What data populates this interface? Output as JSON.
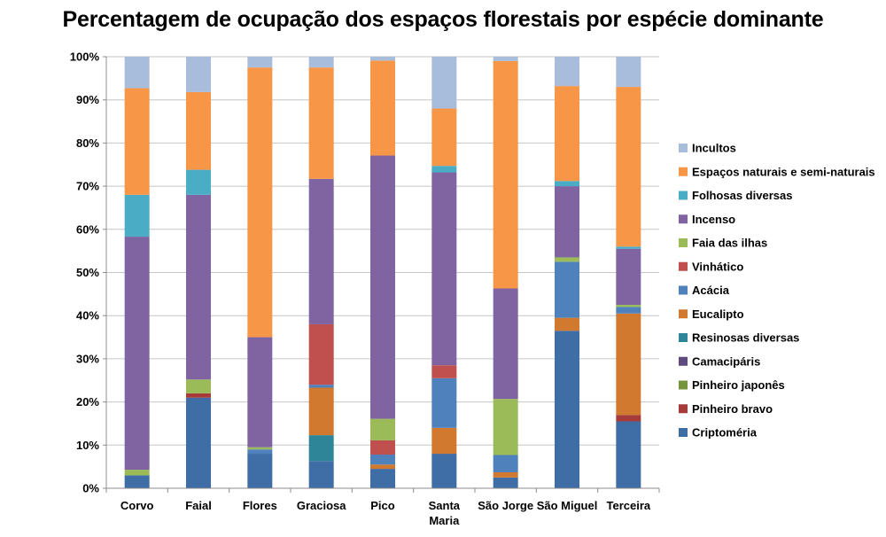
{
  "chart_data": {
    "type": "bar",
    "stacked": "percent",
    "title": "Percentagem de ocupação dos espaços florestais por espécie dominante",
    "xlabel": "",
    "ylabel": "",
    "ylim": [
      0,
      100
    ],
    "yticks": [
      "0%",
      "10%",
      "20%",
      "30%",
      "40%",
      "50%",
      "60%",
      "70%",
      "80%",
      "90%",
      "100%"
    ],
    "legend_position": "right",
    "categories": [
      "Corvo",
      "Faial",
      "Flores",
      "Graciosa",
      "Pico",
      "Santa Maria",
      "São Jorge",
      "São Miguel",
      "Terceira"
    ],
    "category_lines": [
      [
        "Corvo"
      ],
      [
        "Faial"
      ],
      [
        "Flores"
      ],
      [
        "Graciosa"
      ],
      [
        "Pico"
      ],
      [
        "Santa",
        "Maria"
      ],
      [
        "São Jorge"
      ],
      [
        "São Miguel"
      ],
      [
        "Terceira"
      ]
    ],
    "series": [
      {
        "name": "Criptoméria",
        "color": "#3F6DA5",
        "values": [
          3.0,
          21.0,
          8.0,
          6.3,
          4.5,
          8.0,
          2.5,
          36.5,
          15.5
        ]
      },
      {
        "name": "Pinheiro bravo",
        "color": "#A63B3A",
        "values": [
          0.0,
          1.0,
          0.0,
          0.0,
          0.0,
          0.0,
          0.0,
          0.0,
          1.5
        ]
      },
      {
        "name": "Pinheiro japonês",
        "color": "#76943B",
        "values": [
          0.0,
          0.0,
          0.0,
          0.0,
          0.0,
          0.0,
          0.0,
          0.0,
          0.0
        ]
      },
      {
        "name": "Camacipáris",
        "color": "#5E4A7E",
        "values": [
          0.0,
          0.0,
          0.0,
          0.0,
          0.0,
          0.0,
          0.0,
          0.0,
          0.0
        ]
      },
      {
        "name": "Resinosas diversas",
        "color": "#2D8597",
        "values": [
          0.0,
          0.0,
          0.0,
          6.0,
          0.0,
          0.0,
          0.0,
          0.0,
          0.0
        ]
      },
      {
        "name": "Eucalipto",
        "color": "#D0792F",
        "values": [
          0.0,
          0.0,
          0.0,
          11.0,
          1.0,
          6.0,
          1.2,
          3.0,
          23.5
        ]
      },
      {
        "name": "Acácia",
        "color": "#4F81BD",
        "values": [
          0.0,
          0.0,
          1.0,
          0.7,
          2.3,
          11.5,
          4.0,
          13.0,
          1.5
        ]
      },
      {
        "name": "Vinhático",
        "color": "#C0504D",
        "values": [
          0.0,
          0.0,
          0.0,
          14.0,
          3.3,
          3.0,
          0.0,
          0.0,
          0.0
        ]
      },
      {
        "name": "Faia das ilhas",
        "color": "#9BBB59",
        "values": [
          1.3,
          3.2,
          0.5,
          0.0,
          5.0,
          0.0,
          13.0,
          1.0,
          0.5
        ]
      },
      {
        "name": "Incenso",
        "color": "#8064A2",
        "values": [
          54.0,
          42.8,
          25.5,
          33.7,
          61.0,
          44.7,
          25.6,
          16.5,
          13.0
        ]
      },
      {
        "name": "Folhosas diversas",
        "color": "#4BACC6",
        "values": [
          9.7,
          5.8,
          0.0,
          0.0,
          0.0,
          1.5,
          0.0,
          1.2,
          0.5
        ]
      },
      {
        "name": "Espaços naturais e semi-naturais",
        "color": "#F79646",
        "values": [
          24.7,
          18.0,
          62.5,
          25.8,
          22.0,
          13.3,
          52.7,
          22.0,
          37.0
        ]
      },
      {
        "name": "Incultos",
        "color": "#A8BCDB",
        "values": [
          7.3,
          8.2,
          2.5,
          2.5,
          0.9,
          12.0,
          1.0,
          6.8,
          7.0
        ]
      }
    ]
  }
}
